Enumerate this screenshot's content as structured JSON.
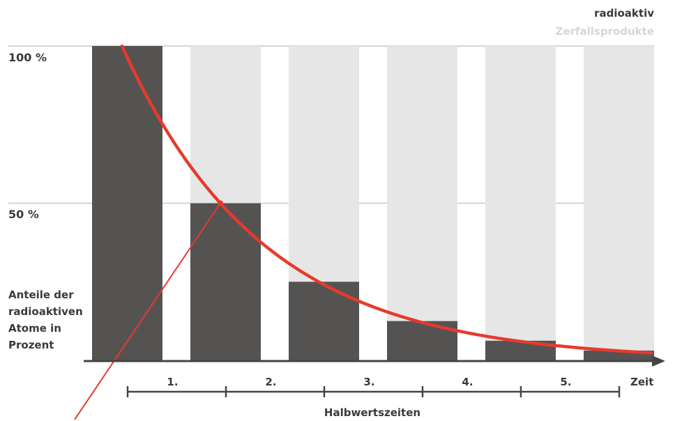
{
  "chart_data": {
    "type": "bar",
    "ylabel_lines": [
      "Anteile der",
      "radioaktiven",
      "Atome in",
      "Prozent"
    ],
    "xlabel": "Zeit",
    "period_axis_label": "Halbwertszeiten",
    "yticks": [
      {
        "value": 100,
        "label": "100 %"
      },
      {
        "value": 50,
        "label": "50 %"
      }
    ],
    "ylim": [
      0,
      100
    ],
    "periods": [
      "1.",
      "2.",
      "3.",
      "4.",
      "5."
    ],
    "series": [
      {
        "name": "radioaktiv",
        "color": "#555352",
        "values": [
          100,
          50,
          25,
          12.5,
          6.25,
          3.125
        ]
      },
      {
        "name": "Zerfallsprodukte",
        "color": "#e6e6e6",
        "values": [
          0,
          50,
          75,
          87.5,
          93.75,
          96.875
        ]
      }
    ],
    "decay_curve": {
      "color": "#e63a2c",
      "half_life_marker_percent": 50
    },
    "tangent_line_color": "#e63a2c",
    "stacked": true,
    "grid": true,
    "legend_placement": "top-right"
  }
}
